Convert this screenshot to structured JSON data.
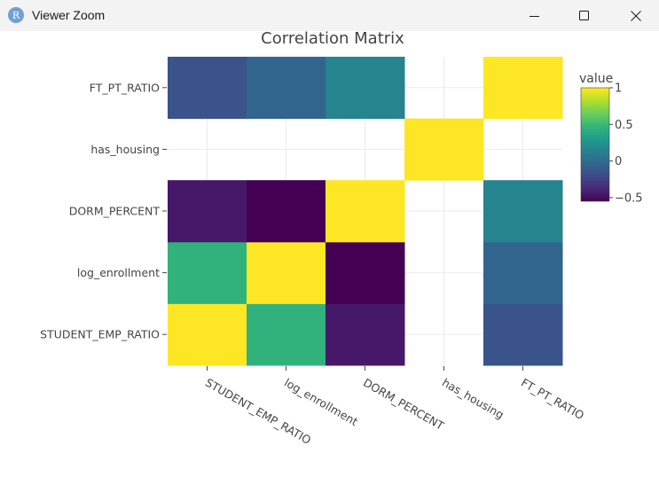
{
  "window": {
    "title": "Viewer Zoom",
    "app_icon_letter": "R",
    "buttons": {
      "minimize": "minimize-icon",
      "maximize": "maximize-icon",
      "close": "close-icon"
    }
  },
  "chart_data": {
    "type": "heatmap",
    "title": "Correlation Matrix",
    "xlabel": "",
    "ylabel": "",
    "x_categories": [
      "STUDENT_EMP_RATIO",
      "log_enrollment",
      "DORM_PERCENT",
      "has_housing",
      "FT_PT_RATIO"
    ],
    "y_categories": [
      "STUDENT_EMP_RATIO",
      "log_enrollment",
      "DORM_PERCENT",
      "has_housing",
      "FT_PT_RATIO"
    ],
    "z": [
      [
        1.0,
        0.45,
        -0.45,
        null,
        -0.15
      ],
      [
        0.45,
        1.0,
        -0.55,
        null,
        -0.05
      ],
      [
        -0.45,
        -0.55,
        1.0,
        null,
        0.15
      ],
      [
        null,
        null,
        null,
        1.0,
        null
      ],
      [
        -0.15,
        -0.05,
        0.15,
        null,
        1.0
      ]
    ],
    "zlim": [
      -0.55,
      1.0
    ],
    "colorbar": {
      "title": "value",
      "ticks": [
        1,
        0.5,
        0,
        -0.5
      ],
      "tick_labels": [
        "1",
        "0.5",
        "0",
        "−0.5"
      ]
    },
    "colorscale": "viridis",
    "grid": true,
    "legend_position": "right"
  }
}
